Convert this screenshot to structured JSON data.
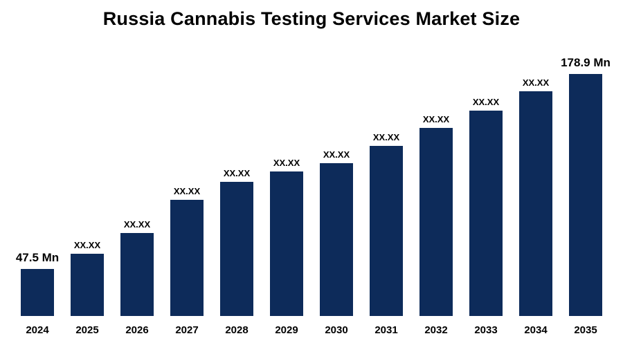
{
  "title": "Russia Cannabis Testing Services Market Size",
  "chart_data": {
    "type": "bar",
    "title": "Russia Cannabis Testing Services Market Size",
    "xlabel": "",
    "ylabel": "",
    "unit": "Mn",
    "legend": null,
    "grid": false,
    "categories": [
      "2024",
      "2025",
      "2026",
      "2027",
      "2028",
      "2029",
      "2030",
      "2031",
      "2032",
      "2033",
      "2034",
      "2035"
    ],
    "values": [
      47.5,
      null,
      null,
      null,
      null,
      null,
      null,
      null,
      null,
      null,
      null,
      178.9
    ],
    "value_labels": [
      "47.5 Mn",
      "XX.XX",
      "XX.XX",
      "XX.XX",
      "XX.XX",
      "XX.XX",
      "XX.XX",
      "XX.XX",
      "XX.XX",
      "XX.XX",
      "XX.XX",
      "178.9 Mn"
    ],
    "bar_heights_pct": [
      19.4,
      25.7,
      34.3,
      48.0,
      55.4,
      59.7,
      63.1,
      70.3,
      77.7,
      84.9,
      92.9,
      100
    ],
    "bar_color": "#0d2b5a",
    "background_color": "#ffffff"
  }
}
